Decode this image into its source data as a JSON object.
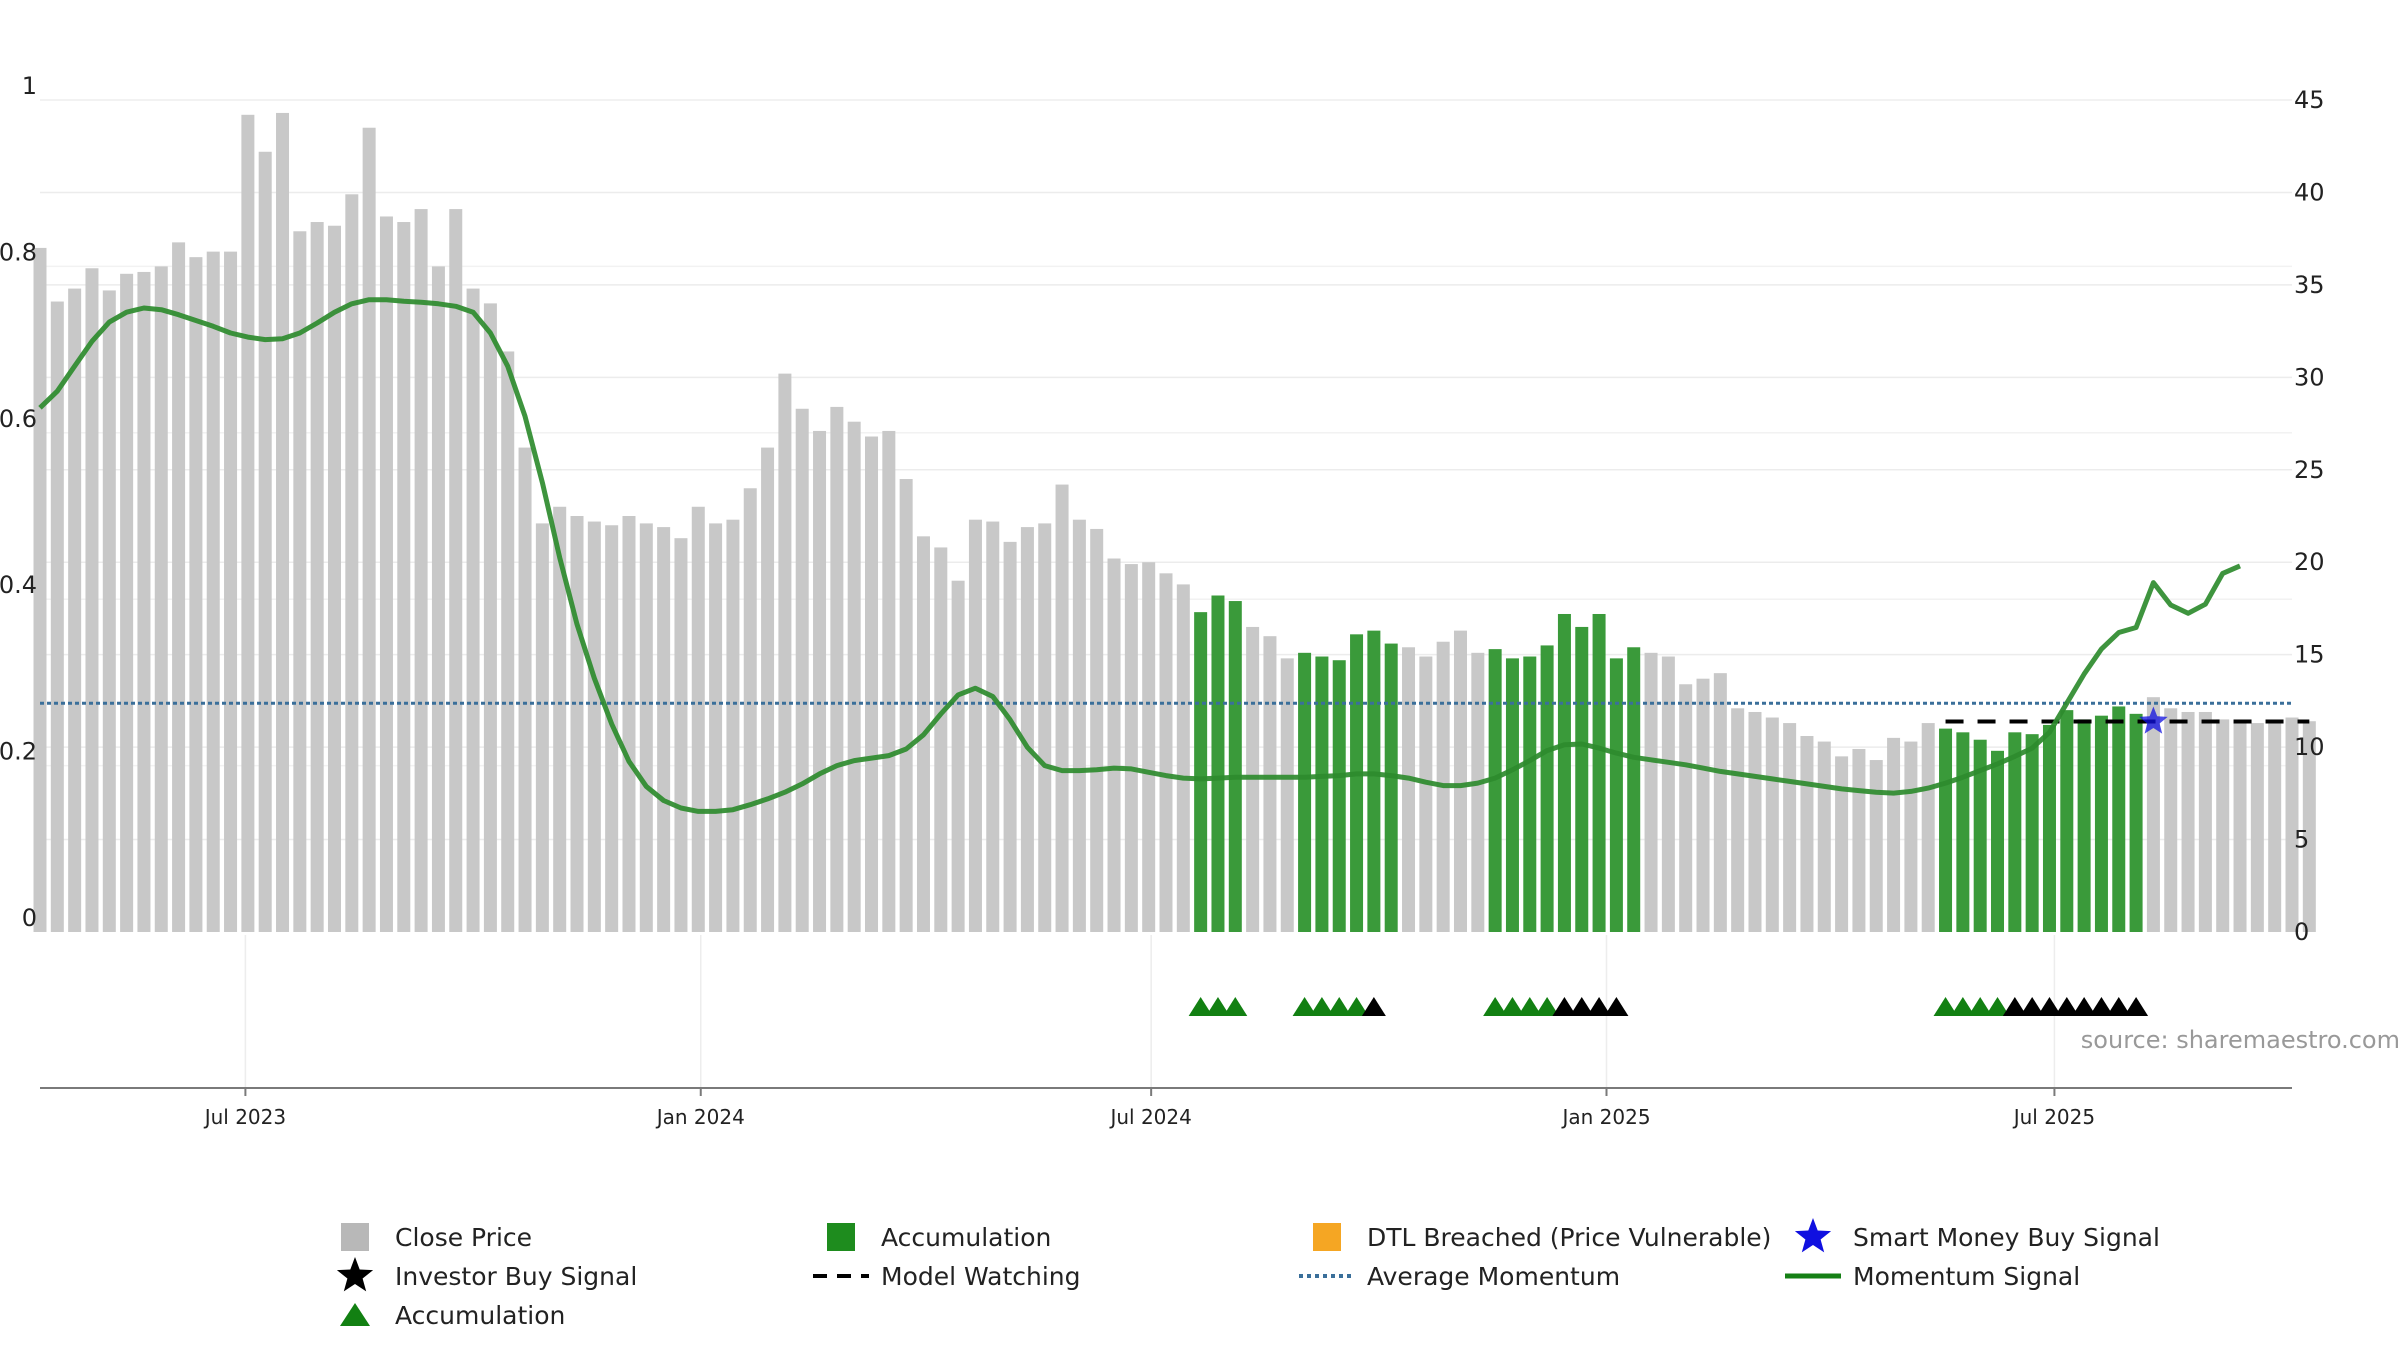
{
  "chart_data": {
    "type": "bar",
    "source_label": "source: sharemaestro.com",
    "left_axis": {
      "ylim": [
        0,
        1
      ],
      "ticks": [
        0,
        0.2,
        0.4,
        0.6,
        0.8,
        1
      ],
      "tick_labels": [
        "0",
        "0.2",
        "0.4",
        "0.6",
        "0.8",
        "1"
      ]
    },
    "right_axis": {
      "ylim": [
        0,
        45
      ],
      "ticks": [
        0,
        5,
        10,
        15,
        20,
        25,
        30,
        35,
        40,
        45
      ],
      "tick_labels": [
        "0",
        "5",
        "10",
        "15",
        "20",
        "25",
        "30",
        "35",
        "40",
        "45"
      ]
    },
    "x_axis": {
      "range": [
        "2023-04-09",
        "2025-10-05"
      ],
      "ticks": [
        "2023-07-01",
        "2024-01-01",
        "2024-07-01",
        "2025-01-01",
        "2025-07-01"
      ],
      "tick_labels": [
        "Jul 2023",
        "Jan 2024",
        "Jul 2024",
        "Jan 2025",
        "Jul 2025"
      ]
    },
    "colors": {
      "close_price": "#c8c8c8",
      "accumulation": "#3a9a3a",
      "accumulation_marker": "#128012",
      "investor_buy": "#000000",
      "smart_money": "#1010e0",
      "average_momentum": "#3a6f9a",
      "momentum": "#2e8b2e",
      "model_watching": "#000000",
      "dtl_breached": "#f5a623"
    },
    "week_start": "2023-04-09",
    "close_price": [
      37.0,
      34.1,
      34.8,
      35.9,
      34.7,
      35.6,
      35.7,
      36.0,
      37.3,
      36.5,
      36.8,
      36.8,
      44.2,
      42.2,
      44.3,
      37.9,
      38.4,
      38.2,
      39.9,
      43.5,
      38.7,
      38.4,
      39.1,
      36.0,
      39.1,
      34.8,
      34.0,
      31.4,
      26.2,
      22.1,
      23.0,
      22.5,
      22.2,
      22.0,
      22.5,
      22.1,
      21.9,
      21.3,
      23.0,
      22.1,
      22.3,
      24.0,
      26.2,
      30.2,
      28.3,
      27.1,
      28.4,
      27.6,
      26.8,
      27.1,
      24.5,
      21.4,
      20.8,
      19.0,
      22.3,
      22.2,
      21.1,
      21.9,
      22.1,
      24.2,
      22.3,
      21.8,
      20.2,
      19.9,
      20.0,
      19.4,
      18.8,
      17.3,
      18.2,
      17.9,
      16.5,
      16.0,
      14.8,
      15.1,
      14.9,
      14.7,
      16.1,
      16.3,
      15.6,
      15.4,
      14.9,
      15.7,
      16.3,
      15.1,
      15.3,
      14.8,
      14.9,
      15.5,
      17.2,
      16.5,
      17.2,
      14.8,
      15.4,
      15.1,
      14.9,
      13.4,
      13.7,
      14.0,
      12.1,
      11.9,
      11.6,
      11.3,
      10.6,
      10.3,
      9.5,
      9.9,
      9.3,
      10.5,
      10.3,
      11.3,
      11.0,
      10.8,
      10.4,
      9.8,
      10.8,
      10.7,
      11.2,
      12.0,
      11.5,
      11.7,
      12.2,
      11.8,
      12.7,
      12.1,
      11.9,
      11.9,
      11.5,
      11.3,
      11.3,
      11.3,
      11.6,
      11.4
    ],
    "accumulation_weeks": [
      67,
      68,
      69,
      73,
      74,
      75,
      76,
      77,
      78,
      84,
      85,
      86,
      87,
      88,
      89,
      90,
      91,
      92,
      110,
      111,
      112,
      113,
      114,
      115,
      116,
      117,
      118,
      119,
      120,
      121
    ],
    "accumulation_markers": [
      67,
      68,
      69,
      73,
      74,
      75,
      76,
      84,
      85,
      86,
      87,
      110,
      111,
      112,
      113
    ],
    "investor_buy_markers": [
      77,
      88,
      89,
      90,
      91,
      114,
      115,
      116,
      117,
      118,
      119,
      120,
      121
    ],
    "average_momentum": 0.275,
    "momentum_signal": [
      0.63,
      0.65,
      0.68,
      0.71,
      0.733,
      0.745,
      0.75,
      0.748,
      0.742,
      0.735,
      0.728,
      0.72,
      0.715,
      0.712,
      0.713,
      0.72,
      0.732,
      0.745,
      0.755,
      0.76,
      0.76,
      0.758,
      0.757,
      0.755,
      0.752,
      0.745,
      0.72,
      0.68,
      0.62,
      0.54,
      0.45,
      0.37,
      0.305,
      0.25,
      0.205,
      0.175,
      0.158,
      0.149,
      0.145,
      0.145,
      0.147,
      0.153,
      0.16,
      0.168,
      0.178,
      0.19,
      0.2,
      0.206,
      0.209,
      0.212,
      0.22,
      0.237,
      0.262,
      0.285,
      0.293,
      0.283,
      0.255,
      0.222,
      0.2,
      0.194,
      0.194,
      0.195,
      0.197,
      0.196,
      0.192,
      0.188,
      0.185,
      0.184,
      0.185,
      0.186,
      0.186,
      0.186,
      0.186,
      0.186,
      0.187,
      0.188,
      0.19,
      0.19,
      0.188,
      0.185,
      0.18,
      0.176,
      0.176,
      0.179,
      0.185,
      0.195,
      0.206,
      0.218,
      0.225,
      0.226,
      0.221,
      0.215,
      0.21,
      0.207,
      0.204,
      0.201,
      0.197,
      0.193,
      0.19,
      0.187,
      0.184,
      0.181,
      0.178,
      0.175,
      0.172,
      0.17,
      0.168,
      0.167,
      0.169,
      0.173,
      0.179,
      0.186,
      0.194,
      0.202,
      0.211,
      0.221,
      0.24,
      0.275,
      0.31,
      0.34,
      0.36,
      0.366,
      0.42,
      0.393,
      0.383,
      0.394,
      0.431,
      0.44
    ],
    "model_watching": {
      "start_week": 110,
      "end_week": 131,
      "value": 0.253
    },
    "smart_money_signal": {
      "week": 122,
      "value": 0.253
    },
    "legend": [
      {
        "label": "Close Price",
        "icon": "gray-square"
      },
      {
        "label": "Accumulation",
        "icon": "green-square"
      },
      {
        "label": "DTL Breached (Price Vulnerable)",
        "icon": "orange-square"
      },
      {
        "label": "Smart Money Buy Signal",
        "icon": "blue-star"
      },
      {
        "label": "Investor Buy Signal",
        "icon": "black-star"
      },
      {
        "label": "Model Watching",
        "icon": "black-dashed-line"
      },
      {
        "label": "Average Momentum",
        "icon": "blue-dotted-line"
      },
      {
        "label": "Momentum Signal",
        "icon": "green-line"
      },
      {
        "label": "Accumulation",
        "icon": "green-triangle"
      }
    ]
  }
}
